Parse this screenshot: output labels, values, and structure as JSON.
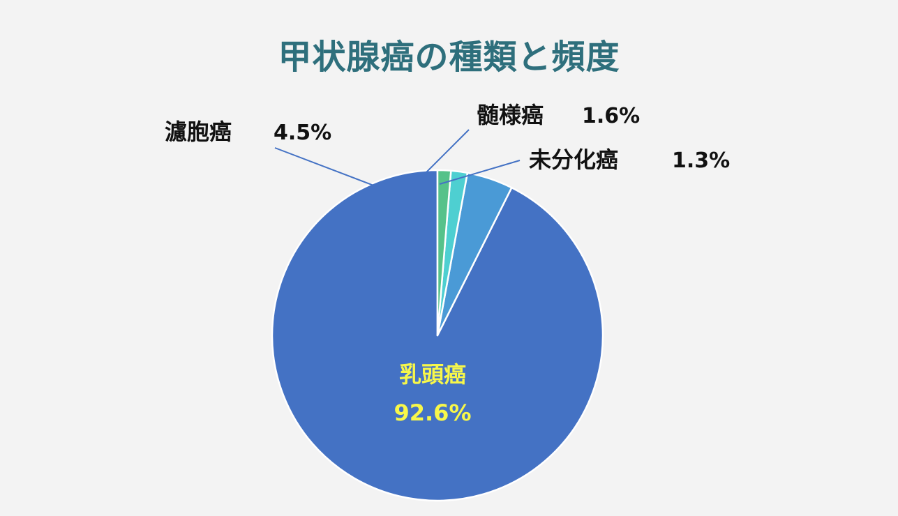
{
  "chart_data": {
    "type": "pie",
    "title": "甲状腺癌の種類と頻度",
    "slices": [
      {
        "label": "乳頭癌",
        "value": 92.6,
        "value_text": "92.6%",
        "color": "#4472c4",
        "label_color": "#f7f74a"
      },
      {
        "label": "濾胞癌",
        "value": 4.5,
        "value_text": "4.5%",
        "color": "#4a9ad6",
        "label_color": "#111111"
      },
      {
        "label": "髄様癌",
        "value": 1.6,
        "value_text": "1.6%",
        "color": "#4ecfd1",
        "label_color": "#111111"
      },
      {
        "label": "未分化癌",
        "value": 1.3,
        "value_text": "1.3%",
        "color": "#56c28a",
        "label_color": "#111111"
      }
    ],
    "start_angle": "12 o'clock",
    "direction": "counter-clockwise",
    "legend": "none"
  }
}
